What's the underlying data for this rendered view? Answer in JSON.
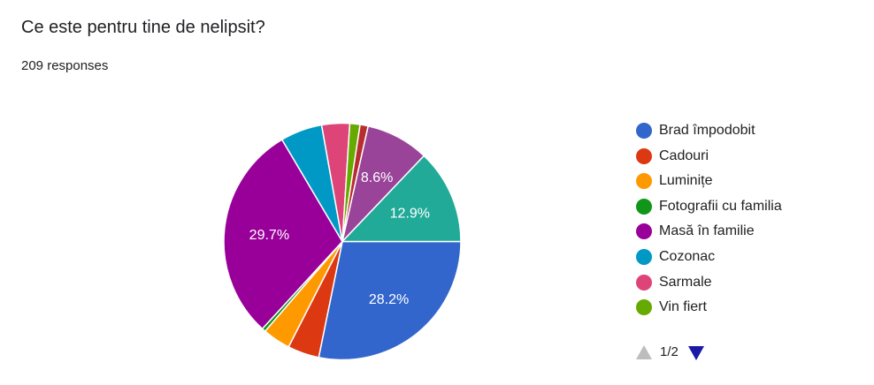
{
  "header": {
    "question": "Ce este pentru tine de nelipsit?",
    "responses": "209 responses"
  },
  "pager": {
    "label": "1/2",
    "up_icon": "triangle-up-icon",
    "down_icon": "triangle-down-icon"
  },
  "chart_data": {
    "type": "pie",
    "legend_position": "right",
    "slices": [
      {
        "label": "Brad împodobit",
        "percent": 28.2,
        "color": "#3366cc",
        "value_label": "28.2%"
      },
      {
        "label": "Cadouri",
        "percent": 4.3,
        "color": "#dc3912",
        "value_label": ""
      },
      {
        "label": "Luminițe",
        "percent": 3.8,
        "color": "#ff9900",
        "value_label": ""
      },
      {
        "label": "Fotografii cu familia",
        "percent": 0.5,
        "color": "#109618",
        "value_label": ""
      },
      {
        "label": "Masă în familie",
        "percent": 29.7,
        "color": "#990099",
        "value_label": "29.7%"
      },
      {
        "label": "Cozonac",
        "percent": 5.7,
        "color": "#0099c6",
        "value_label": ""
      },
      {
        "label": "Sarmale",
        "percent": 3.8,
        "color": "#dd4477",
        "value_label": ""
      },
      {
        "label": "Vin fiert",
        "percent": 1.4,
        "color": "#66aa00",
        "value_label": ""
      },
      {
        "label": "",
        "percent": 1.1,
        "color": "#b82e2e",
        "value_label": ""
      },
      {
        "label": "",
        "percent": 8.6,
        "color": "#994499",
        "value_label": "8.6%"
      },
      {
        "label": "",
        "percent": 12.9,
        "color": "#22aa99",
        "value_label": "12.9%"
      }
    ]
  }
}
